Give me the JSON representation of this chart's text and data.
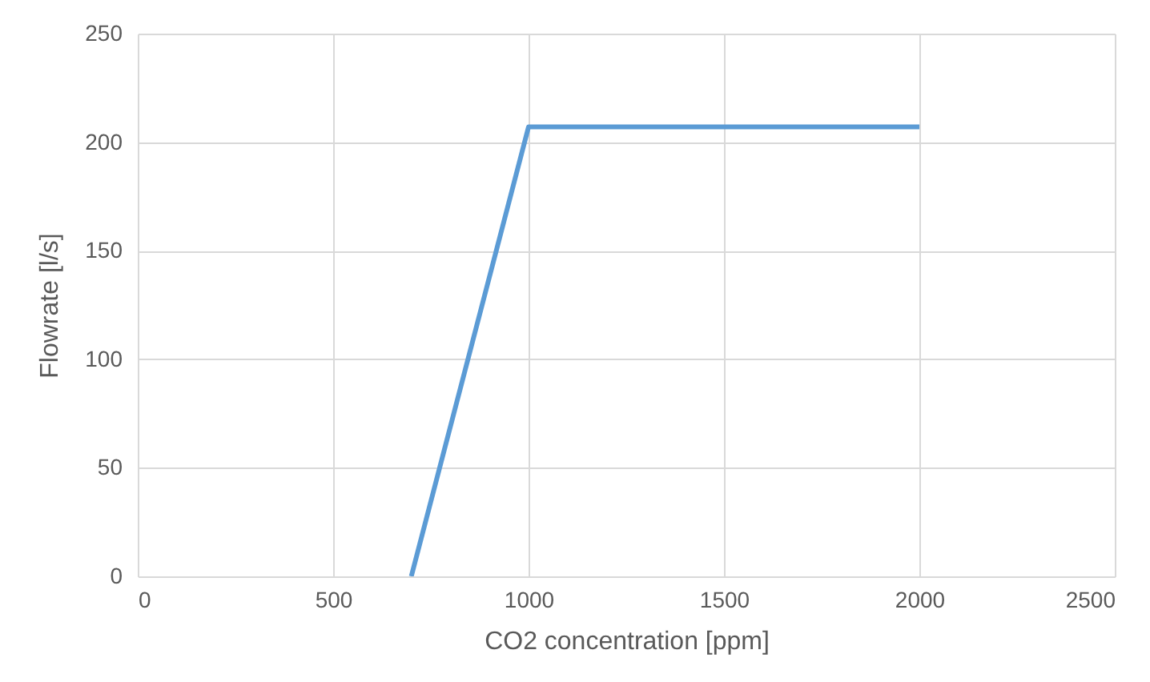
{
  "chart_data": {
    "type": "line",
    "xlabel": "CO2 concentration [ppm]",
    "ylabel": "Flowrate [l/s]",
    "series": [
      {
        "color": "#5b9bd5",
        "x": [
          700,
          1000,
          2000
        ],
        "values": [
          0,
          207,
          207
        ]
      }
    ],
    "xlim": [
      0,
      2500
    ],
    "xticks": [
      0,
      500,
      1000,
      1500,
      2000,
      2500
    ],
    "ylim": [
      0,
      250
    ],
    "yticks": [
      0,
      50,
      100,
      150,
      200,
      250
    ],
    "grid": true,
    "marker": "none",
    "line_style": "solid",
    "legend": false
  }
}
